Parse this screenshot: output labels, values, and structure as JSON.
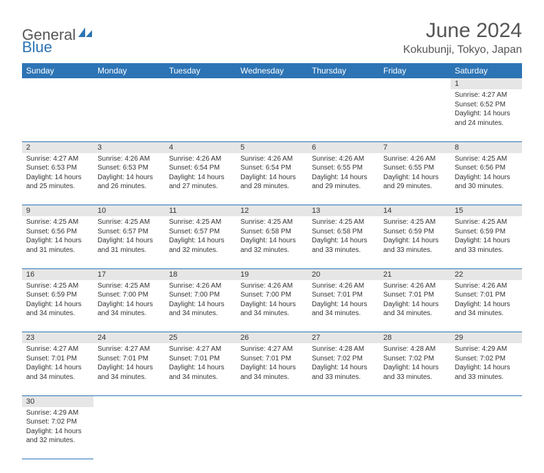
{
  "brand": {
    "part1": "General",
    "part2": "Blue"
  },
  "title": "June 2024",
  "location": "Kokubunji, Tokyo, Japan",
  "colors": {
    "header_bg": "#2d74b5",
    "header_text": "#ffffff",
    "daynum_bg": "#e6e6e6",
    "border": "#2d74b5",
    "text": "#333333",
    "title_text": "#555555"
  },
  "dayNames": [
    "Sunday",
    "Monday",
    "Tuesday",
    "Wednesday",
    "Thursday",
    "Friday",
    "Saturday"
  ],
  "weeks": [
    [
      null,
      null,
      null,
      null,
      null,
      null,
      {
        "d": "1",
        "sr": "4:27 AM",
        "ss": "6:52 PM",
        "dl": "14 hours and 24 minutes."
      }
    ],
    [
      {
        "d": "2",
        "sr": "4:27 AM",
        "ss": "6:53 PM",
        "dl": "14 hours and 25 minutes."
      },
      {
        "d": "3",
        "sr": "4:26 AM",
        "ss": "6:53 PM",
        "dl": "14 hours and 26 minutes."
      },
      {
        "d": "4",
        "sr": "4:26 AM",
        "ss": "6:54 PM",
        "dl": "14 hours and 27 minutes."
      },
      {
        "d": "5",
        "sr": "4:26 AM",
        "ss": "6:54 PM",
        "dl": "14 hours and 28 minutes."
      },
      {
        "d": "6",
        "sr": "4:26 AM",
        "ss": "6:55 PM",
        "dl": "14 hours and 29 minutes."
      },
      {
        "d": "7",
        "sr": "4:26 AM",
        "ss": "6:55 PM",
        "dl": "14 hours and 29 minutes."
      },
      {
        "d": "8",
        "sr": "4:25 AM",
        "ss": "6:56 PM",
        "dl": "14 hours and 30 minutes."
      }
    ],
    [
      {
        "d": "9",
        "sr": "4:25 AM",
        "ss": "6:56 PM",
        "dl": "14 hours and 31 minutes."
      },
      {
        "d": "10",
        "sr": "4:25 AM",
        "ss": "6:57 PM",
        "dl": "14 hours and 31 minutes."
      },
      {
        "d": "11",
        "sr": "4:25 AM",
        "ss": "6:57 PM",
        "dl": "14 hours and 32 minutes."
      },
      {
        "d": "12",
        "sr": "4:25 AM",
        "ss": "6:58 PM",
        "dl": "14 hours and 32 minutes."
      },
      {
        "d": "13",
        "sr": "4:25 AM",
        "ss": "6:58 PM",
        "dl": "14 hours and 33 minutes."
      },
      {
        "d": "14",
        "sr": "4:25 AM",
        "ss": "6:59 PM",
        "dl": "14 hours and 33 minutes."
      },
      {
        "d": "15",
        "sr": "4:25 AM",
        "ss": "6:59 PM",
        "dl": "14 hours and 33 minutes."
      }
    ],
    [
      {
        "d": "16",
        "sr": "4:25 AM",
        "ss": "6:59 PM",
        "dl": "14 hours and 34 minutes."
      },
      {
        "d": "17",
        "sr": "4:25 AM",
        "ss": "7:00 PM",
        "dl": "14 hours and 34 minutes."
      },
      {
        "d": "18",
        "sr": "4:26 AM",
        "ss": "7:00 PM",
        "dl": "14 hours and 34 minutes."
      },
      {
        "d": "19",
        "sr": "4:26 AM",
        "ss": "7:00 PM",
        "dl": "14 hours and 34 minutes."
      },
      {
        "d": "20",
        "sr": "4:26 AM",
        "ss": "7:01 PM",
        "dl": "14 hours and 34 minutes."
      },
      {
        "d": "21",
        "sr": "4:26 AM",
        "ss": "7:01 PM",
        "dl": "14 hours and 34 minutes."
      },
      {
        "d": "22",
        "sr": "4:26 AM",
        "ss": "7:01 PM",
        "dl": "14 hours and 34 minutes."
      }
    ],
    [
      {
        "d": "23",
        "sr": "4:27 AM",
        "ss": "7:01 PM",
        "dl": "14 hours and 34 minutes."
      },
      {
        "d": "24",
        "sr": "4:27 AM",
        "ss": "7:01 PM",
        "dl": "14 hours and 34 minutes."
      },
      {
        "d": "25",
        "sr": "4:27 AM",
        "ss": "7:01 PM",
        "dl": "14 hours and 34 minutes."
      },
      {
        "d": "26",
        "sr": "4:27 AM",
        "ss": "7:01 PM",
        "dl": "14 hours and 34 minutes."
      },
      {
        "d": "27",
        "sr": "4:28 AM",
        "ss": "7:02 PM",
        "dl": "14 hours and 33 minutes."
      },
      {
        "d": "28",
        "sr": "4:28 AM",
        "ss": "7:02 PM",
        "dl": "14 hours and 33 minutes."
      },
      {
        "d": "29",
        "sr": "4:29 AM",
        "ss": "7:02 PM",
        "dl": "14 hours and 33 minutes."
      }
    ],
    [
      {
        "d": "30",
        "sr": "4:29 AM",
        "ss": "7:02 PM",
        "dl": "14 hours and 32 minutes."
      },
      null,
      null,
      null,
      null,
      null,
      null
    ]
  ],
  "labels": {
    "sunrise": "Sunrise:",
    "sunset": "Sunset:",
    "daylight": "Daylight:"
  }
}
